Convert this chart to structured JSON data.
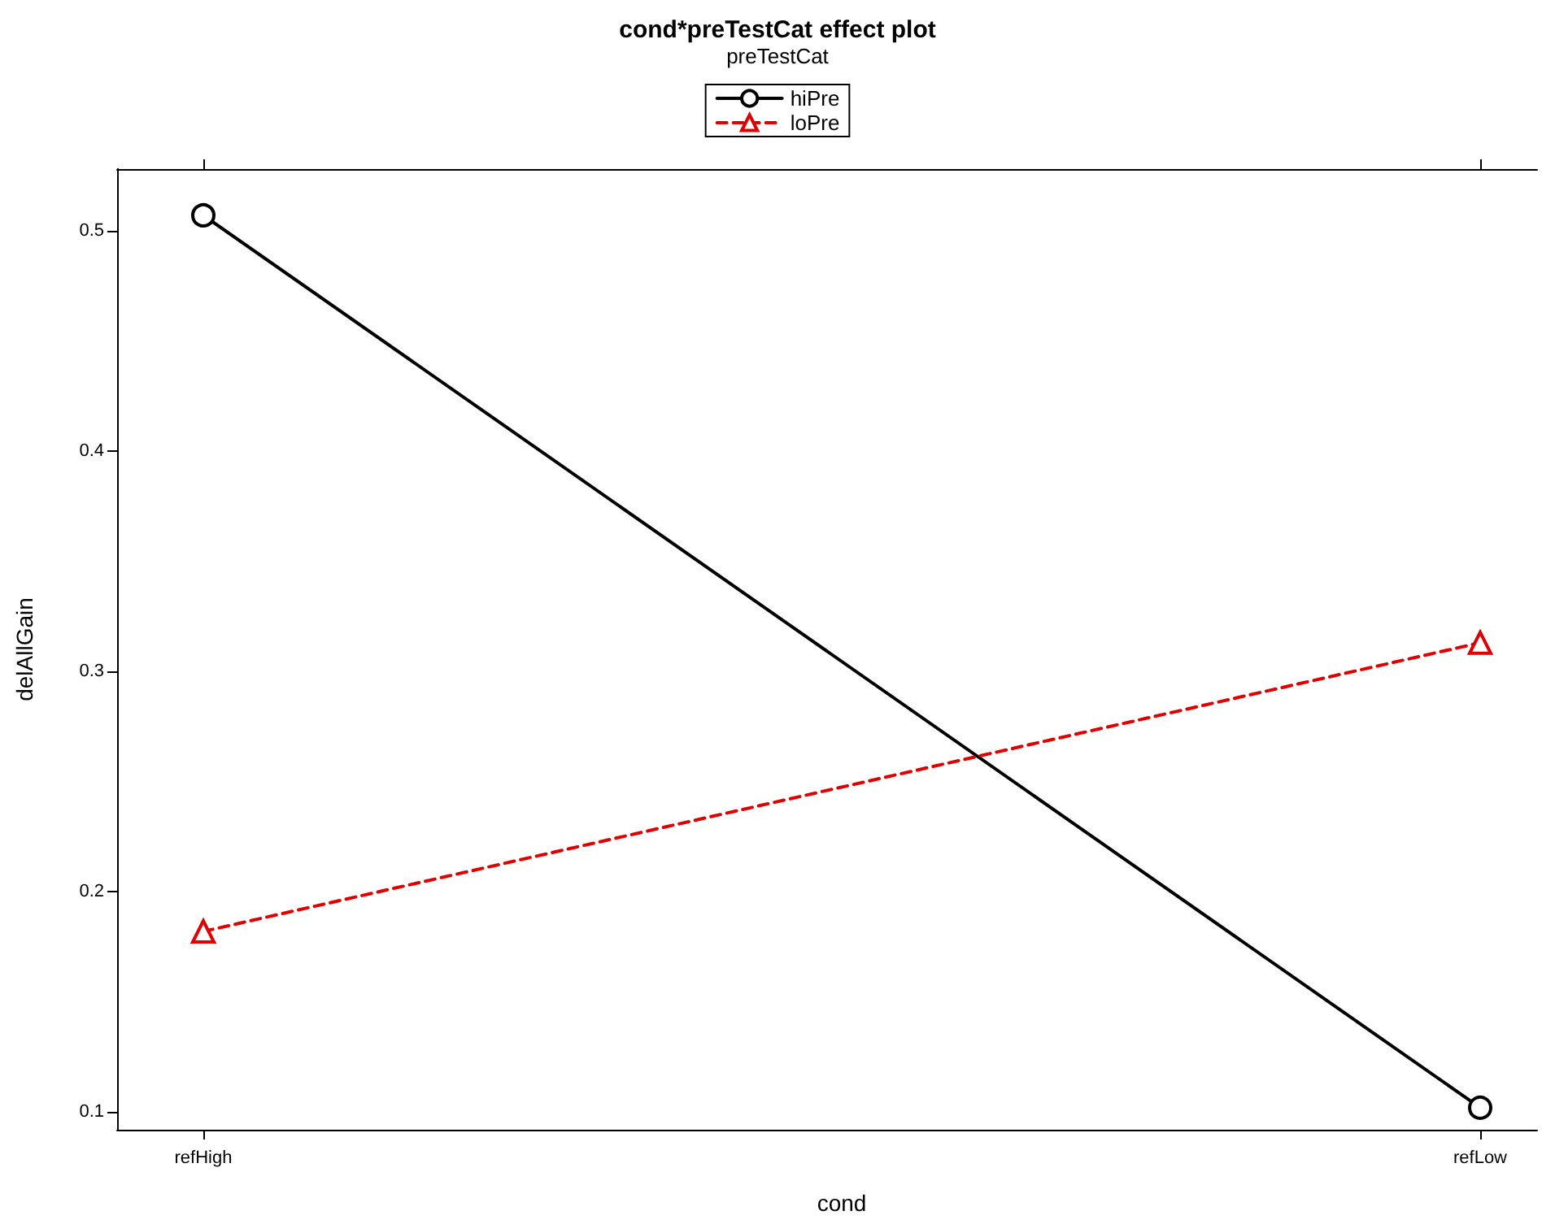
{
  "chart_data": {
    "type": "line",
    "title": "cond*preTestCat effect plot",
    "xlabel": "cond",
    "ylabel": "delAllGain",
    "legend_title": "preTestCat",
    "legend": "top",
    "categories": [
      "refHigh",
      "refLow"
    ],
    "ylim": [
      0.092,
      0.528
    ],
    "yticks": [
      0.1,
      0.2,
      0.3,
      0.4,
      0.5
    ],
    "grid": false,
    "series": [
      {
        "name": "hiPre",
        "color": "#000000",
        "values": [
          0.507,
          0.102
        ],
        "marker": "circle",
        "line_style": "solid"
      },
      {
        "name": "loPre",
        "color": "#e00000",
        "values": [
          0.182,
          0.313
        ],
        "marker": "triangle",
        "line_style": "dashed"
      }
    ]
  }
}
